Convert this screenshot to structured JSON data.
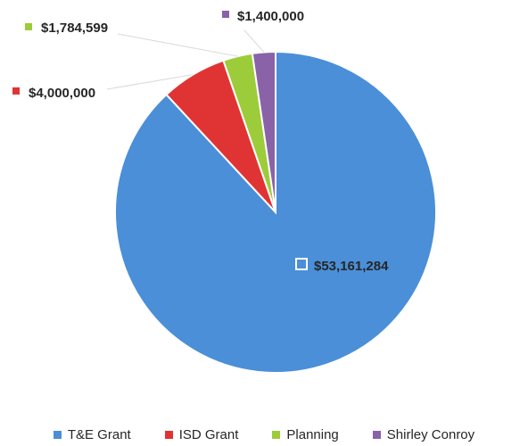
{
  "chart_data": {
    "type": "pie",
    "title": "",
    "categories": [
      "T&E Grant",
      "ISD Grant",
      "Planning",
      "Shirley Conroy"
    ],
    "values": [
      53161284,
      4000000,
      1784599,
      1400000
    ],
    "data_labels": [
      "$53,161,284",
      "$4,000,000",
      "$1,784,599",
      "$1,400,000"
    ],
    "colors": [
      "#4a8fd8",
      "#e03434",
      "#9dcc3a",
      "#8a62a8"
    ],
    "start_angle_deg": 0,
    "direction": "clockwise",
    "legend_position": "bottom"
  }
}
